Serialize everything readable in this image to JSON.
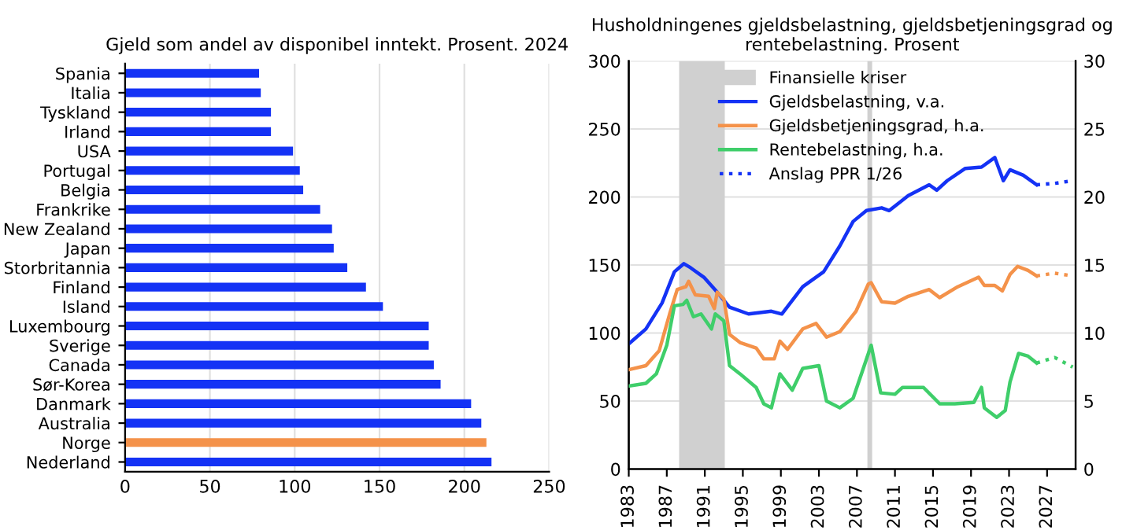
{
  "chart_data": [
    {
      "type": "bar",
      "orientation": "horizontal",
      "title": "Gjeld som andel av disponibel inntekt. Prosent. 2024",
      "categories": [
        "Spania",
        "Italia",
        "Tyskland",
        "Irland",
        "USA",
        "Portugal",
        "Belgia",
        "Frankrike",
        "New Zealand",
        "Japan",
        "Storbritannia",
        "Finland",
        "Island",
        "Luxembourg",
        "Sverige",
        "Canada",
        "Sør-Korea",
        "Danmark",
        "Australia",
        "Norge",
        "Nederland"
      ],
      "values": [
        79,
        80,
        86,
        86,
        99,
        103,
        105,
        115,
        122,
        123,
        131,
        142,
        152,
        179,
        179,
        182,
        186,
        204,
        210,
        213,
        216
      ],
      "colors": [
        "#1432f5",
        "#1432f5",
        "#1432f5",
        "#1432f5",
        "#1432f5",
        "#1432f5",
        "#1432f5",
        "#1432f5",
        "#1432f5",
        "#1432f5",
        "#1432f5",
        "#1432f5",
        "#1432f5",
        "#1432f5",
        "#1432f5",
        "#1432f5",
        "#1432f5",
        "#1432f5",
        "#1432f5",
        "#f4924a",
        "#1432f5"
      ],
      "xlim": [
        0,
        250
      ],
      "xticks": [
        0,
        50,
        100,
        150,
        200,
        250
      ],
      "grid": "x"
    },
    {
      "type": "line",
      "title": "Husholdningenes gjeldsbelastning, gjeldsbetjeningsgrad og rentebelastning. Prosent",
      "xlim": [
        1983,
        2030
      ],
      "xticks": [
        1983,
        1987,
        1991,
        1995,
        1999,
        2003,
        2007,
        2011,
        2015,
        2019,
        2023,
        2027
      ],
      "ylim": [
        0,
        300
      ],
      "yticks": [
        0,
        50,
        100,
        150,
        200,
        250,
        300
      ],
      "y2lim": [
        0,
        30
      ],
      "y2ticks": [
        0,
        5,
        10,
        15,
        20,
        25,
        30
      ],
      "grid": "y",
      "legend": "top",
      "bands": [
        {
          "axis": "x",
          "from": 1988.3,
          "to": 1993.1,
          "label": "Finansielle kriser",
          "color": "#d0d0d0"
        },
        {
          "axis": "x",
          "from": 2008.1,
          "to": 2008.6,
          "color": "#d0d0d0"
        }
      ],
      "series": [
        {
          "name": "Gjeldsbelastning, v.a.",
          "color": "#1432f5",
          "line_style": "solid",
          "x": [
            1983,
            1984.8,
            1986.5,
            1987.8,
            1988.8,
            1989.5,
            1990.9,
            1992.3,
            1993.6,
            1995.6,
            1998,
            1999.1,
            2001.3,
            2003.5,
            2005.2,
            2006.6,
            2008,
            2009.6,
            2010.4,
            2012.4,
            2014.6,
            2015.4,
            2016.5,
            2018.4,
            2020.1,
            2021.5,
            2022.4,
            2023.1,
            2024.5,
            2025.9
          ],
          "values": [
            92,
            103,
            122,
            145,
            151,
            148,
            141,
            130,
            119,
            114,
            116,
            114,
            134,
            145,
            164,
            182,
            190,
            192,
            190,
            201,
            209,
            205,
            212,
            221,
            222,
            229,
            212,
            220,
            216,
            209
          ]
        },
        {
          "name": "Gjeldsbetjeningsgrad, h.a.",
          "color": "#f4924a",
          "axis": "y2",
          "line_style": "solid",
          "x": [
            1983,
            1984.8,
            1986.2,
            1987.3,
            1988.1,
            1989,
            1989.3,
            1990,
            1991.4,
            1992,
            1992.3,
            1993,
            1993.6,
            1994.7,
            1996.4,
            1997.2,
            1998.3,
            1998.9,
            1999.7,
            2001.3,
            2002.7,
            2003.8,
            2005.2,
            2006.9,
            2008.2,
            2008.5,
            2009.6,
            2011,
            2012.4,
            2014.6,
            2015.7,
            2017.6,
            2019.8,
            2020.4,
            2021.5,
            2022.3,
            2023.1,
            2023.9,
            2025,
            2025.9
          ],
          "values": [
            7.3,
            7.6,
            8.7,
            11.4,
            13.2,
            13.4,
            13.8,
            12.8,
            12.7,
            11.8,
            13.0,
            12.5,
            9.9,
            9.3,
            8.9,
            8.1,
            8.1,
            9.4,
            8.8,
            10.3,
            10.7,
            9.7,
            10.1,
            11.6,
            13.6,
            13.7,
            12.3,
            12.2,
            12.7,
            13.2,
            12.6,
            13.4,
            14.1,
            13.5,
            13.5,
            13.1,
            14.3,
            14.9,
            14.6,
            14.2
          ]
        },
        {
          "name": "Rentebelastning, h.a.",
          "color": "#3fce6a",
          "axis": "y2",
          "line_style": "solid",
          "x": [
            1983,
            1984.8,
            1985.9,
            1987,
            1987.8,
            1988.7,
            1989.1,
            1989.8,
            1990.6,
            1991.7,
            1992.1,
            1993,
            1993.6,
            1994.7,
            1996.4,
            1997.2,
            1998,
            1998.9,
            2000.2,
            2001.3,
            2003,
            2003.8,
            2005.2,
            2006.6,
            2008.5,
            2009.5,
            2011,
            2011.8,
            2014,
            2015.7,
            2017.3,
            2019.3,
            2020.1,
            2020.4,
            2021.7,
            2022.6,
            2023.1,
            2024,
            2025,
            2025.9
          ],
          "values": [
            6.1,
            6.3,
            7.0,
            9.1,
            12.0,
            12.1,
            12.4,
            11.2,
            11.4,
            10.3,
            11.4,
            10.9,
            7.6,
            7.0,
            6.0,
            4.8,
            4.5,
            7.0,
            5.8,
            7.4,
            7.6,
            5.0,
            4.5,
            5.2,
            9.1,
            5.6,
            5.5,
            6.0,
            6.0,
            4.8,
            4.8,
            4.9,
            6.0,
            4.5,
            3.8,
            4.3,
            6.4,
            8.5,
            8.3,
            7.8
          ]
        },
        {
          "name": "Anslag PPR 1/26",
          "color": "#1432f5",
          "line_style": "dotted",
          "x": [
            2025.9,
            2027.8,
            2029.7
          ],
          "values": [
            209,
            210,
            212
          ]
        },
        {
          "color": "#f4924a",
          "axis": "y2",
          "line_style": "dotted",
          "x": [
            2025.9,
            2027.8,
            2029.7
          ],
          "values": [
            14.2,
            14.4,
            14.2
          ]
        },
        {
          "color": "#3fce6a",
          "axis": "y2",
          "line_style": "dotted",
          "x": [
            2025.9,
            2027.8,
            2029.7
          ],
          "values": [
            7.8,
            8.2,
            7.5
          ]
        }
      ]
    }
  ]
}
